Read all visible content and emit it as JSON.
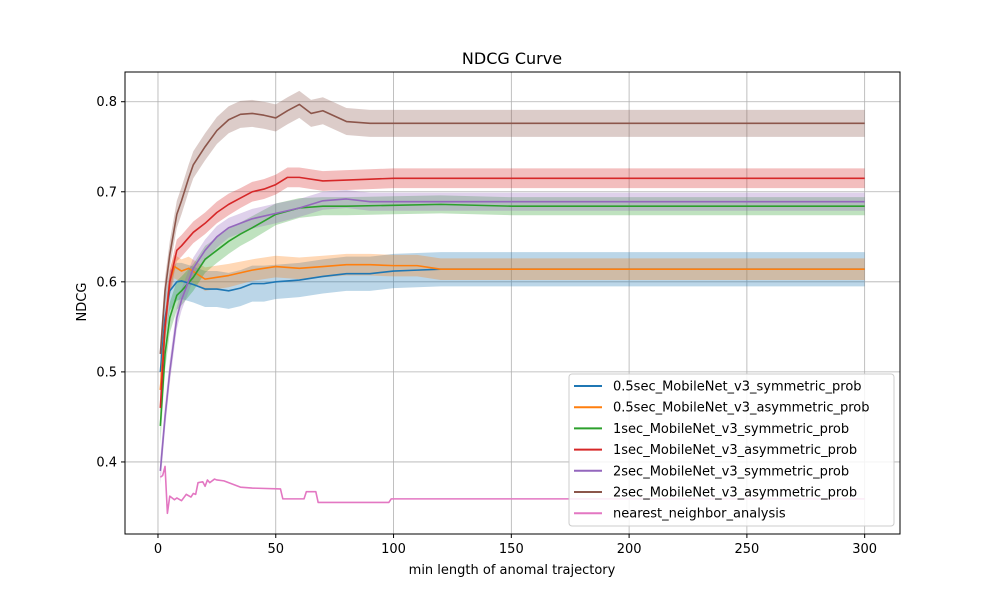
{
  "chart_data": {
    "type": "line",
    "title": "NDCG Curve",
    "xlabel": "min length of anomal trajectory",
    "ylabel": "NDCG",
    "xlim": [
      -14,
      315
    ],
    "ylim": [
      0.32,
      0.833
    ],
    "xticks": [
      0,
      50,
      100,
      150,
      200,
      250,
      300
    ],
    "yticks": [
      0.4,
      0.5,
      0.6,
      0.7,
      0.8
    ],
    "xtick_labels": [
      "0",
      "50",
      "100",
      "150",
      "200",
      "250",
      "300"
    ],
    "ytick_labels": [
      "0.4",
      "0.5",
      "0.6",
      "0.7",
      "0.8"
    ],
    "grid": true,
    "legend_position": "lower-right",
    "series": [
      {
        "name": "0.5sec_MobileNet_v3_symmetric_prob",
        "color": "#1f77b4",
        "x": [
          1,
          3,
          5,
          8,
          10,
          15,
          20,
          25,
          30,
          35,
          40,
          45,
          50,
          60,
          70,
          80,
          90,
          100,
          110,
          120,
          150,
          200,
          250,
          300
        ],
        "y": [
          0.5,
          0.56,
          0.59,
          0.6,
          0.601,
          0.597,
          0.592,
          0.592,
          0.59,
          0.593,
          0.598,
          0.598,
          0.6,
          0.602,
          0.606,
          0.609,
          0.609,
          0.612,
          0.613,
          0.614,
          0.614,
          0.614,
          0.614,
          0.614
        ],
        "band": [
          0.025,
          0.022,
          0.022,
          0.021,
          0.02,
          0.02,
          0.02,
          0.02,
          0.02,
          0.02,
          0.02,
          0.02,
          0.019,
          0.019,
          0.019,
          0.019,
          0.019,
          0.019,
          0.019,
          0.019,
          0.019,
          0.019,
          0.019,
          0.019
        ]
      },
      {
        "name": "0.5sec_MobileNet_v3_asymmetric_prob",
        "color": "#ff7f0e",
        "x": [
          1,
          3,
          5,
          7,
          10,
          13,
          17,
          20,
          25,
          30,
          40,
          50,
          60,
          70,
          80,
          90,
          100,
          110,
          120,
          150,
          200,
          250,
          300
        ],
        "y": [
          0.48,
          0.55,
          0.6,
          0.617,
          0.612,
          0.615,
          0.608,
          0.603,
          0.605,
          0.607,
          0.613,
          0.617,
          0.615,
          0.617,
          0.619,
          0.619,
          0.618,
          0.618,
          0.614,
          0.614,
          0.614,
          0.614,
          0.614
        ],
        "band": [
          0.02,
          0.016,
          0.014,
          0.013,
          0.013,
          0.013,
          0.013,
          0.013,
          0.013,
          0.013,
          0.012,
          0.012,
          0.012,
          0.012,
          0.012,
          0.012,
          0.012,
          0.012,
          0.012,
          0.012,
          0.012,
          0.012,
          0.012
        ]
      },
      {
        "name": "1sec_MobileNet_v3_symmetric_prob",
        "color": "#2ca02c",
        "x": [
          1,
          3,
          5,
          8,
          10,
          15,
          20,
          25,
          30,
          35,
          40,
          50,
          60,
          70,
          80,
          100,
          120,
          150,
          200,
          250,
          300
        ],
        "y": [
          0.44,
          0.52,
          0.56,
          0.585,
          0.59,
          0.605,
          0.625,
          0.635,
          0.645,
          0.653,
          0.66,
          0.675,
          0.682,
          0.684,
          0.684,
          0.685,
          0.686,
          0.684,
          0.684,
          0.684,
          0.684
        ],
        "band": [
          0.02,
          0.018,
          0.017,
          0.016,
          0.016,
          0.015,
          0.015,
          0.014,
          0.014,
          0.013,
          0.013,
          0.012,
          0.011,
          0.01,
          0.01,
          0.01,
          0.01,
          0.01,
          0.01,
          0.01,
          0.01
        ]
      },
      {
        "name": "1sec_MobileNet_v3_asymmetric_prob",
        "color": "#d62728",
        "x": [
          1,
          3,
          5,
          8,
          10,
          15,
          20,
          25,
          30,
          35,
          40,
          45,
          50,
          55,
          60,
          70,
          80,
          90,
          100,
          150,
          200,
          250,
          300
        ],
        "y": [
          0.46,
          0.55,
          0.6,
          0.635,
          0.64,
          0.655,
          0.665,
          0.677,
          0.686,
          0.693,
          0.7,
          0.703,
          0.708,
          0.716,
          0.716,
          0.712,
          0.713,
          0.714,
          0.715,
          0.715,
          0.715,
          0.715,
          0.715
        ],
        "band": [
          0.015,
          0.013,
          0.013,
          0.012,
          0.012,
          0.012,
          0.012,
          0.012,
          0.012,
          0.011,
          0.011,
          0.011,
          0.011,
          0.011,
          0.011,
          0.011,
          0.011,
          0.011,
          0.011,
          0.011,
          0.011,
          0.011,
          0.011
        ]
      },
      {
        "name": "2sec_MobileNet_v3_symmetric_prob",
        "color": "#9467bd",
        "x": [
          1,
          3,
          5,
          8,
          10,
          15,
          20,
          25,
          30,
          35,
          40,
          50,
          60,
          70,
          80,
          90,
          100,
          150,
          200,
          250,
          300
        ],
        "y": [
          0.39,
          0.45,
          0.5,
          0.56,
          0.58,
          0.615,
          0.635,
          0.65,
          0.66,
          0.665,
          0.67,
          0.676,
          0.682,
          0.69,
          0.692,
          0.689,
          0.689,
          0.689,
          0.689,
          0.689,
          0.689
        ],
        "band": [
          0.015,
          0.014,
          0.013,
          0.012,
          0.012,
          0.012,
          0.012,
          0.012,
          0.011,
          0.011,
          0.011,
          0.011,
          0.01,
          0.01,
          0.01,
          0.01,
          0.01,
          0.01,
          0.01,
          0.01,
          0.01
        ]
      },
      {
        "name": "2sec_MobileNet_v3_asymmetric_prob",
        "color": "#8c564b",
        "x": [
          1,
          3,
          5,
          8,
          10,
          13,
          15,
          20,
          25,
          30,
          35,
          40,
          45,
          50,
          55,
          60,
          65,
          70,
          80,
          90,
          100,
          150,
          200,
          250,
          300
        ],
        "y": [
          0.52,
          0.59,
          0.63,
          0.675,
          0.69,
          0.715,
          0.73,
          0.75,
          0.768,
          0.78,
          0.786,
          0.787,
          0.785,
          0.782,
          0.79,
          0.797,
          0.787,
          0.79,
          0.778,
          0.776,
          0.776,
          0.776,
          0.776,
          0.776,
          0.776
        ],
        "band": [
          0.015,
          0.015,
          0.015,
          0.015,
          0.015,
          0.015,
          0.015,
          0.015,
          0.015,
          0.015,
          0.015,
          0.015,
          0.015,
          0.015,
          0.015,
          0.015,
          0.015,
          0.015,
          0.015,
          0.015,
          0.015,
          0.015,
          0.015,
          0.015,
          0.015
        ]
      },
      {
        "name": "nearest_neighbor_analysis",
        "color": "#e377c2",
        "x": [
          1,
          2,
          3,
          4,
          5,
          7,
          8,
          10,
          12,
          14,
          15,
          16,
          17,
          19,
          20,
          21,
          22,
          24,
          25,
          28,
          35,
          40,
          52,
          53,
          62,
          63,
          67,
          68,
          98,
          99,
          300
        ],
        "y": [
          0.383,
          0.385,
          0.395,
          0.343,
          0.362,
          0.358,
          0.36,
          0.357,
          0.364,
          0.361,
          0.365,
          0.364,
          0.377,
          0.378,
          0.373,
          0.38,
          0.377,
          0.381,
          0.38,
          0.379,
          0.372,
          0.371,
          0.37,
          0.359,
          0.359,
          0.367,
          0.367,
          0.355,
          0.355,
          0.359,
          0.359
        ],
        "band": null
      }
    ]
  }
}
